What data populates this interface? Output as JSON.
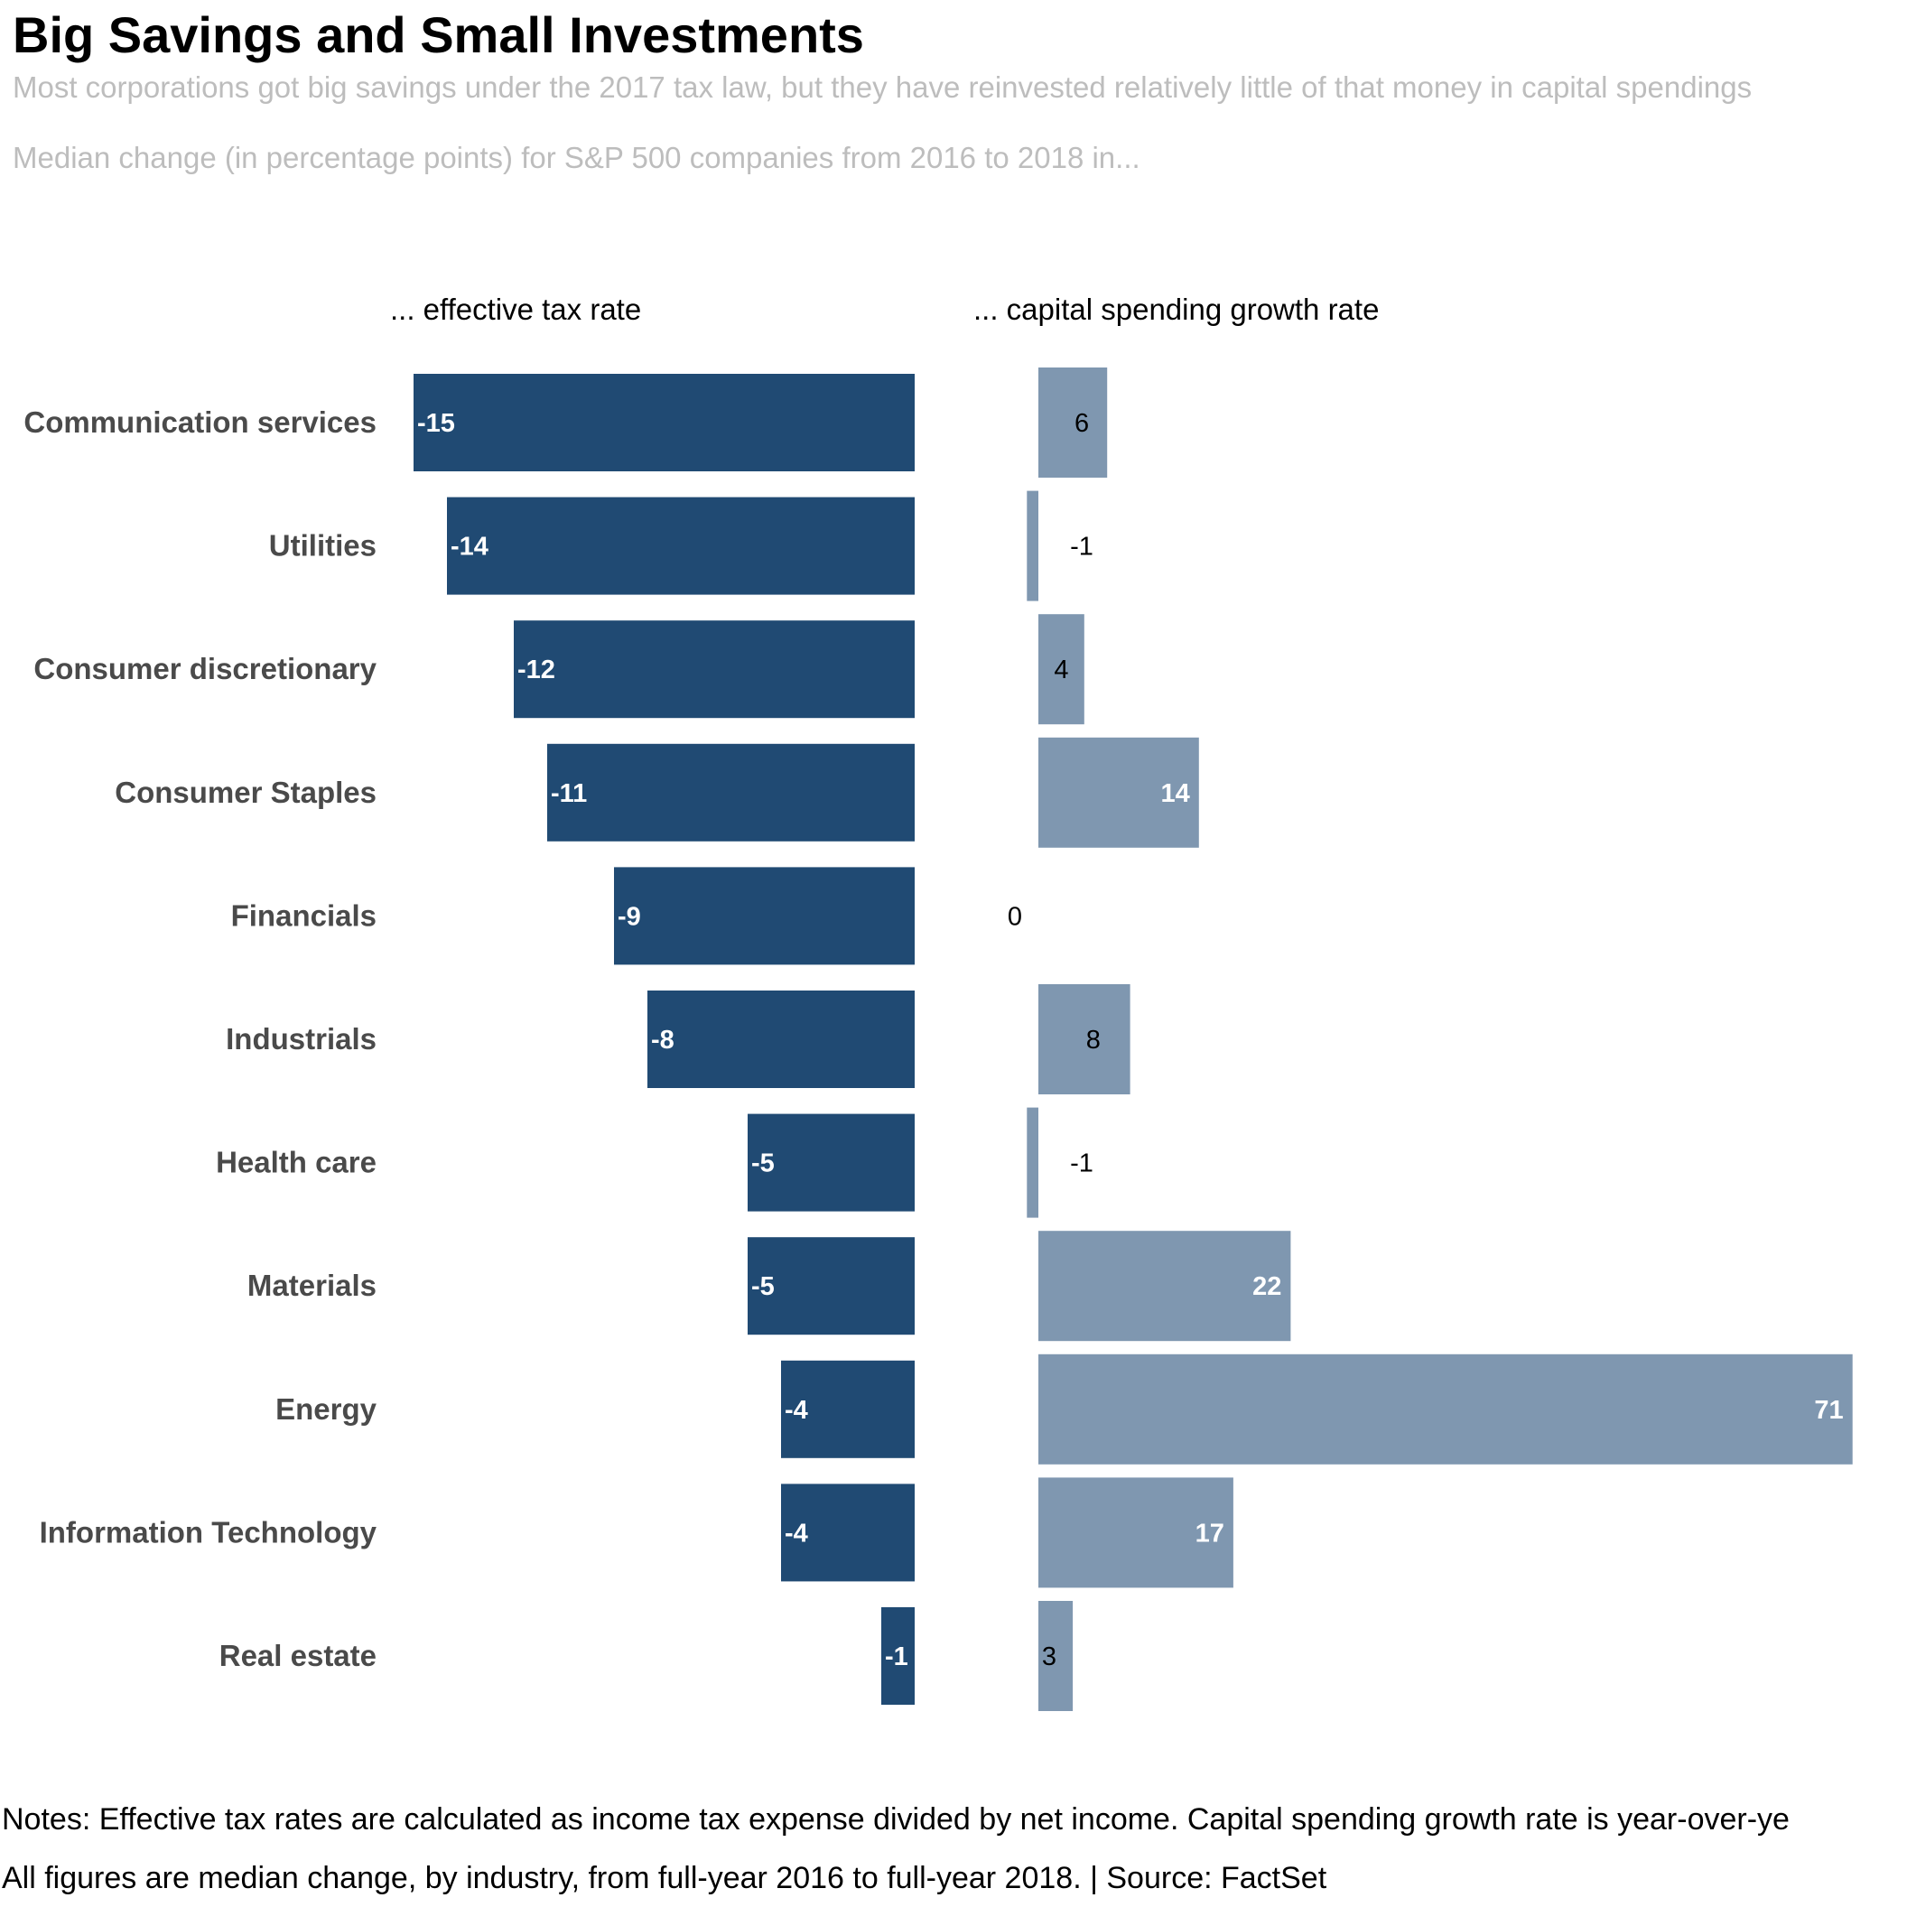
{
  "title": "Big Savings and Small Investments",
  "subtitle": "Most corporations got big savings under the 2017 tax law, but they have reinvested relatively little of that money in capital spendings",
  "subtitle2": "Median change (in percentage points) for S&P 500 companies from 2016 to 2018  in...",
  "notes": {
    "line1": "Notes: Effective tax rates are calculated as income tax expense divided by net income. Capital spending growth rate is year-over-ye",
    "line2": "All figures are median change, by industry, from full-year 2016 to full-year 2018. | Source: FactSet"
  },
  "colors": {
    "tax_bar": "#204a73",
    "capex_bar": "#7f97b0",
    "label_on_dark": "#ffffff",
    "label_outside": "#000000"
  },
  "chart_data": {
    "type": "bar",
    "orientation": "horizontal",
    "categories": [
      "Communication services",
      "Utilities",
      "Consumer discretionary",
      "Consumer Staples",
      "Financials",
      "Industrials",
      "Health care",
      "Materials",
      "Energy",
      "Information Technology",
      "Real estate"
    ],
    "series": [
      {
        "name": "... effective tax rate",
        "values": [
          -15,
          -14,
          -12,
          -11,
          -9,
          -8,
          -5,
          -5,
          -4,
          -4,
          -1
        ],
        "labels": [
          "-15",
          "-14",
          "-12",
          "-11",
          "-9",
          "-8",
          "-5",
          "-5",
          "-4",
          "-4",
          "-1"
        ]
      },
      {
        "name": "... capital spending growth rate",
        "values": [
          6,
          -1,
          4,
          14,
          0,
          8,
          -1,
          22,
          71,
          17,
          3
        ],
        "labels": [
          "6",
          "-1",
          "4",
          "14",
          "0",
          "8",
          "-1",
          "22",
          "71",
          "17",
          "3"
        ]
      }
    ],
    "grid": false,
    "legend": "none"
  }
}
